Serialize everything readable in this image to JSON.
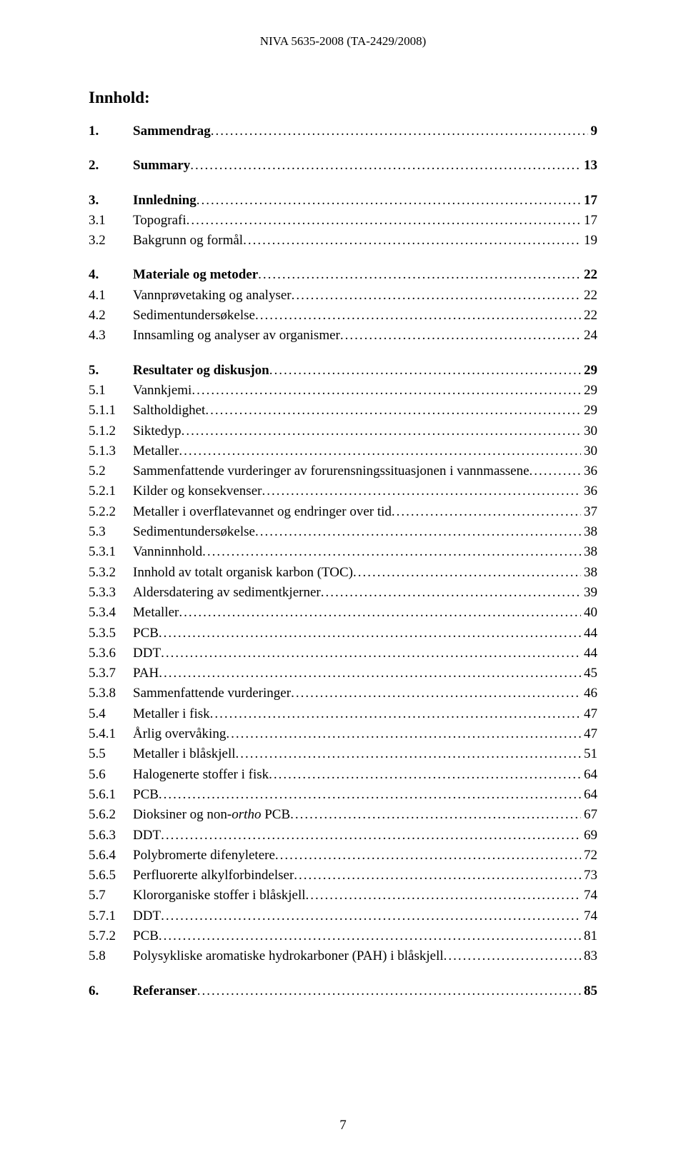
{
  "header": "NIVA 5635-2008 (TA-2429/2008)",
  "title": "Innhold:",
  "page_number": "7",
  "toc": [
    {
      "group": [
        {
          "num": "1.",
          "label": "Sammendrag",
          "page": "9",
          "bold": true
        }
      ]
    },
    {
      "group": [
        {
          "num": "2.",
          "label": "Summary",
          "page": "13",
          "bold": true
        }
      ]
    },
    {
      "group": [
        {
          "num": "3.",
          "label": "Innledning",
          "page": "17",
          "bold": true
        },
        {
          "num": "3.1",
          "label": "Topografi",
          "page": "17"
        },
        {
          "num": "3.2",
          "label": "Bakgrunn og formål",
          "page": "19"
        }
      ]
    },
    {
      "group": [
        {
          "num": "4.",
          "label": "Materiale og metoder",
          "page": "22",
          "bold": true
        },
        {
          "num": "4.1",
          "label": "Vannprøvetaking og analyser",
          "page": "22"
        },
        {
          "num": "4.2",
          "label": "Sedimentundersøkelse",
          "page": "22"
        },
        {
          "num": "4.3",
          "label": "Innsamling og analyser av organismer",
          "page": "24"
        }
      ]
    },
    {
      "group": [
        {
          "num": "5.",
          "label": "Resultater og diskusjon",
          "page": "29",
          "bold": true
        },
        {
          "num": "5.1",
          "label": "Vannkjemi",
          "page": "29"
        },
        {
          "num": "5.1.1",
          "label": "Saltholdighet",
          "page": "29"
        },
        {
          "num": "5.1.2",
          "label": "Siktedyp",
          "page": "30"
        },
        {
          "num": "5.1.3",
          "label": "Metaller",
          "page": "30"
        },
        {
          "num": "5.2",
          "label": "Sammenfattende vurderinger av forurensningssituasjonen i vannmassene",
          "page": "36"
        },
        {
          "num": "5.2.1",
          "label": "Kilder og konsekvenser",
          "page": "36"
        },
        {
          "num": "5.2.2",
          "label": "Metaller i overflatevannet og endringer over tid",
          "page": "37"
        },
        {
          "num": "5.3",
          "label": "Sedimentundersøkelse",
          "page": "38"
        },
        {
          "num": "5.3.1",
          "label": "Vanninnhold",
          "page": "38"
        },
        {
          "num": "5.3.2",
          "label": "Innhold av totalt organisk karbon (TOC)",
          "page": "38"
        },
        {
          "num": "5.3.3",
          "label": "Aldersdatering av sedimentkjerner",
          "page": "39"
        },
        {
          "num": "5.3.4",
          "label": "Metaller",
          "page": "40"
        },
        {
          "num": "5.3.5",
          "label": "PCB",
          "page": "44"
        },
        {
          "num": "5.3.6",
          "label": "DDT",
          "page": "44"
        },
        {
          "num": "5.3.7",
          "label": "PAH",
          "page": "45"
        },
        {
          "num": "5.3.8",
          "label": "Sammenfattende vurderinger",
          "page": "46"
        },
        {
          "num": "5.4",
          "label": "Metaller i fisk",
          "page": "47"
        },
        {
          "num": "5.4.1",
          "label": "Årlig overvåking",
          "page": "47"
        },
        {
          "num": "5.5",
          "label": "Metaller i blåskjell",
          "page": "51"
        },
        {
          "num": "5.6",
          "label": "Halogenerte stoffer i fisk",
          "page": "64"
        },
        {
          "num": "5.6.1",
          "label": "PCB",
          "page": "64"
        },
        {
          "num": "5.6.2",
          "label": "",
          "label_parts": [
            {
              "text": "Dioksiner og non-",
              "italic": false
            },
            {
              "text": "ortho",
              "italic": true
            },
            {
              "text": " PCB",
              "italic": false
            }
          ],
          "page": "67"
        },
        {
          "num": "5.6.3",
          "label": "DDT",
          "page": "69"
        },
        {
          "num": "5.6.4",
          "label": "Polybromerte difenyletere",
          "page": "72"
        },
        {
          "num": "5.6.5",
          "label": "Perfluorerte alkylforbindelser",
          "page": "73"
        },
        {
          "num": "5.7",
          "label": "Klororganiske stoffer i blåskjell",
          "page": "74"
        },
        {
          "num": "5.7.1",
          "label": "DDT",
          "page": "74"
        },
        {
          "num": "5.7.2",
          "label": "PCB",
          "page": "81"
        },
        {
          "num": "5.8",
          "label": "Polysykliske aromatiske hydrokarboner (PAH) i blåskjell",
          "page": "83"
        }
      ]
    },
    {
      "group": [
        {
          "num": "6.",
          "label": "Referanser",
          "page": "85",
          "bold": true
        }
      ]
    }
  ]
}
